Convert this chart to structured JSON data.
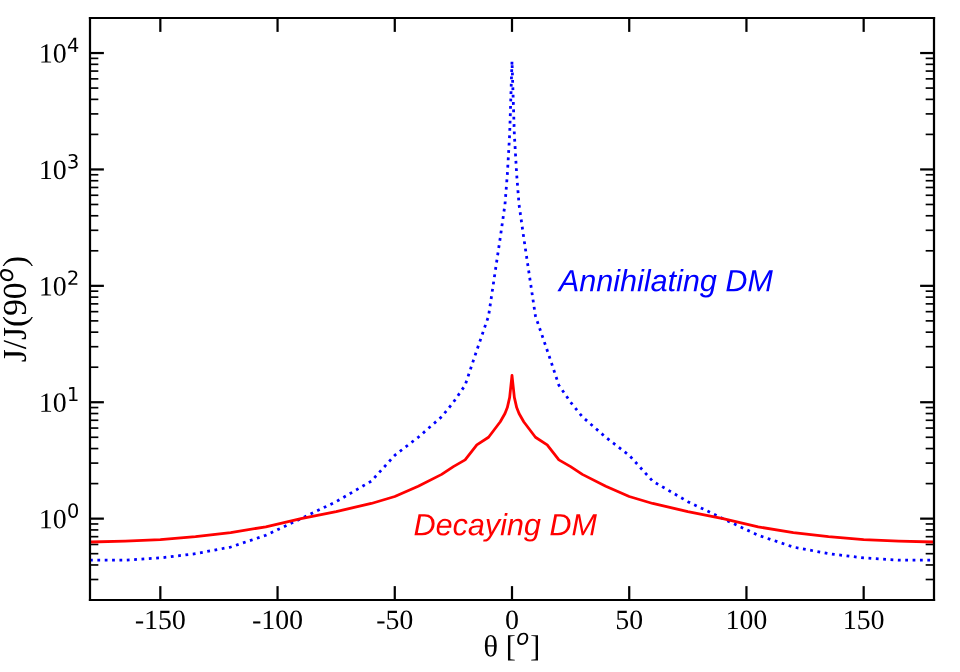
{
  "chart_data": {
    "type": "line",
    "xlabel": "θ [$^{o}$]",
    "ylabel": "J/J(90$^{o}$)",
    "log": "y",
    "xlim": [
      -180,
      180
    ],
    "xticks": [
      -150,
      -100,
      -50,
      0,
      50,
      100,
      150
    ],
    "ylim": [
      0.2,
      20000
    ],
    "yticks": [
      {
        "value": 1,
        "label": "10$^{0}$"
      },
      {
        "value": 10,
        "label": "10$^{1}$"
      },
      {
        "value": 100,
        "label": "10$^{2}$"
      },
      {
        "value": 1000,
        "label": "10$^{3}$"
      },
      {
        "value": 10000,
        "label": "10$^{4}$"
      }
    ],
    "grid": false,
    "legend": false,
    "marker": "none",
    "x": [
      -180,
      -165,
      -150,
      -135,
      -120,
      -105,
      -90,
      -75,
      -60,
      -50,
      -40,
      -30,
      -25,
      -20,
      -15,
      -10,
      -5,
      -3,
      -2,
      -1,
      0,
      1,
      2,
      3,
      5,
      10,
      15,
      20,
      25,
      30,
      40,
      50,
      60,
      75,
      90,
      105,
      120,
      135,
      150,
      165,
      180
    ],
    "series": [
      {
        "name": "Annihilating DM",
        "color": "#0000ff",
        "line_style": "dotted",
        "values": [
          0.44,
          0.44,
          0.46,
          0.5,
          0.57,
          0.72,
          1.0,
          1.4,
          2.1,
          3.5,
          5,
          7.5,
          10,
          14,
          28,
          55,
          260,
          500,
          900,
          2000,
          8500,
          2000,
          900,
          500,
          260,
          55,
          28,
          14,
          10,
          7.5,
          5,
          3.5,
          2.1,
          1.4,
          1.0,
          0.72,
          0.57,
          0.5,
          0.46,
          0.44,
          0.44
        ]
      },
      {
        "name": "Decaying DM",
        "color": "#ff0000",
        "line_style": "solid",
        "values": [
          0.63,
          0.64,
          0.66,
          0.7,
          0.76,
          0.85,
          1.0,
          1.15,
          1.35,
          1.55,
          1.9,
          2.4,
          2.8,
          3.2,
          4.3,
          5.0,
          6.8,
          8,
          9,
          11,
          17,
          11,
          9,
          8,
          6.8,
          5.0,
          4.3,
          3.2,
          2.8,
          2.4,
          1.9,
          1.55,
          1.35,
          1.15,
          1.0,
          0.85,
          0.76,
          0.7,
          0.66,
          0.64,
          0.63
        ]
      }
    ]
  }
}
